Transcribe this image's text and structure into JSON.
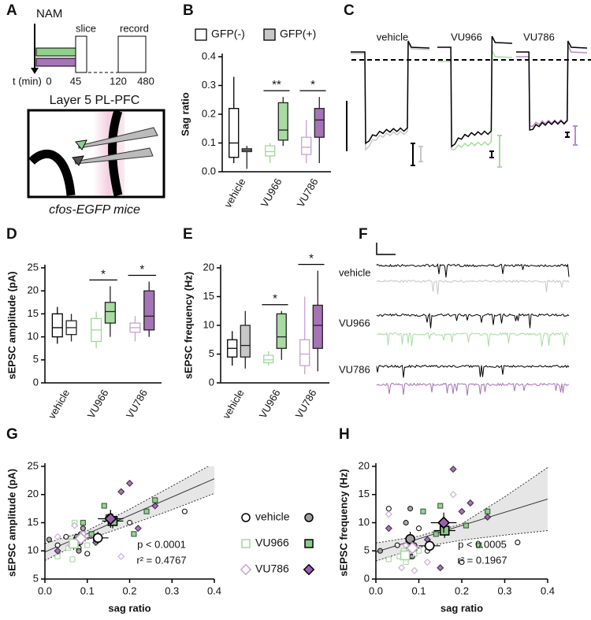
{
  "panel_labels": [
    "A",
    "B",
    "C",
    "D",
    "E",
    "F",
    "G",
    "H"
  ],
  "schematic": {
    "nam": "NAM",
    "slice": "slice",
    "record": "record",
    "time_label": "t (min)",
    "times": [
      0,
      45,
      120,
      480
    ],
    "region": "Layer 5 PL-PFC",
    "mice": "cfos-EGFP mice"
  },
  "traces_c": [
    "vehicle",
    "VU966",
    "VU786"
  ],
  "traces_f": [
    "vehicle",
    "VU966",
    "VU786"
  ],
  "chart_data": [
    {
      "type": "box",
      "ylabel": "Sag ratio",
      "categories": [
        "vehicle",
        "VU966",
        "VU786"
      ],
      "ylim": [
        0,
        0.4
      ],
      "yticks": [
        {
          "value": 0,
          "label": "0.0"
        },
        0.1,
        0.2,
        0.3,
        0.4
      ],
      "stroke_colors": [
        "#000000",
        "#9fd89a",
        "#c7a0d4"
      ],
      "fill_colors": [
        "#c8c8c8",
        "#a8dba2",
        "#a673b6"
      ],
      "legend": true,
      "series": [
        {
          "name": "GFP(-)",
          "color": "#ffffff",
          "values": [
            [
              0.03,
              0.05,
              0.1,
              0.22,
              0.33
            ],
            [
              0.03,
              0.055,
              0.07,
              0.09,
              0.1
            ],
            [
              0.03,
              0.06,
              0.085,
              0.12,
              0.18
            ]
          ]
        },
        {
          "name": "GFP(+)",
          "color": "#c8c8c8",
          "values": [
            [
              0.01,
              0.07,
              0.075,
              0.08,
              0.09
            ],
            [
              0.09,
              0.11,
              0.145,
              0.24,
              0.26
            ],
            [
              0.03,
              0.12,
              0.18,
              0.22,
              0.26
            ]
          ]
        }
      ],
      "annotations": [
        {
          "category": "VU966",
          "text": "**"
        },
        {
          "category": "VU786",
          "text": "*"
        }
      ]
    },
    {
      "type": "box",
      "ylabel": "sEPSC amplitude (pA)",
      "categories": [
        "vehicle",
        "VU966",
        "VU786"
      ],
      "ylim": [
        0,
        25
      ],
      "yticks": [
        0,
        5,
        10,
        15,
        20,
        25
      ],
      "stroke_colors": [
        "#000000",
        "#9fd89a",
        "#c7a0d4"
      ],
      "fill_colors": [
        "#ffffff",
        "#a8dba2",
        "#a673b6"
      ],
      "series": [
        {
          "name": "GFP(-)",
          "color": "#ffffff",
          "values": [
            [
              8.5,
              10,
              12,
              15,
              16.5
            ],
            [
              7.5,
              9,
              11.5,
              14,
              15.5
            ],
            [
              9,
              11,
              12,
              13,
              14.5
            ]
          ]
        },
        {
          "name": "GFP(+)",
          "color": "#c8c8c8",
          "values": [
            [
              9,
              10.5,
              12,
              13.5,
              15
            ],
            [
              10,
              13,
              15.5,
              17.5,
              21
            ],
            [
              10,
              11.5,
              14.5,
              20,
              22
            ]
          ]
        }
      ],
      "annotations": [
        {
          "category": "VU966",
          "text": "*"
        },
        {
          "category": "VU786",
          "text": "*"
        }
      ]
    },
    {
      "type": "box",
      "ylabel": "sEPSC frequency (Hz)",
      "categories": [
        "vehicle",
        "VU966",
        "VU786"
      ],
      "ylim": [
        0,
        20
      ],
      "yticks": [
        0,
        5,
        10,
        15,
        20
      ],
      "stroke_colors": [
        "#000000",
        "#9fd89a",
        "#c7a0d4"
      ],
      "fill_colors": [
        "#c8c8c8",
        "#a8dba2",
        "#a673b6"
      ],
      "series": [
        {
          "name": "GFP(-)",
          "color": "#ffffff",
          "values": [
            [
              3,
              4.5,
              6,
              7.5,
              9
            ],
            [
              3,
              3.5,
              4,
              4.8,
              5.5
            ],
            [
              1.5,
              3,
              5,
              7.5,
              15
            ]
          ]
        },
        {
          "name": "GFP(+)",
          "color": "#c8c8c8",
          "values": [
            [
              2.5,
              4.5,
              6.5,
              10,
              12.5
            ],
            [
              4,
              6,
              8,
              12,
              12.5
            ],
            [
              2,
              6,
              10,
              13.5,
              19.5
            ]
          ]
        }
      ],
      "annotations": [
        {
          "category": "VU966",
          "text": "*"
        },
        {
          "category": "VU786",
          "text": "*"
        }
      ]
    },
    {
      "type": "scatter",
      "xlabel": "sag ratio",
      "ylabel": "sEPSC amplitude (pA)",
      "xlim": [
        0,
        0.4
      ],
      "xticks": [
        {
          "value": 0,
          "label": "0.0"
        },
        0.1,
        0.2,
        0.3,
        0.4
      ],
      "ylim": [
        5,
        25
      ],
      "yticks": [
        5,
        10,
        15,
        20,
        25
      ],
      "stats": [
        "p < 0.0001",
        "r² = 0.4767"
      ],
      "fit": {
        "x": [
          0,
          0.4
        ],
        "y": [
          9.8,
          22.8
        ]
      },
      "ci": {
        "x": [
          0,
          0.1,
          0.2,
          0.3,
          0.4
        ],
        "lower": [
          8.3,
          12.0,
          14.6,
          17.3,
          20.2
        ],
        "upper": [
          11.3,
          13.6,
          17.4,
          21.5,
          25.6
        ]
      },
      "legend": true,
      "series": [
        {
          "name": "vehicle",
          "marker": "circle",
          "color": "#000000",
          "fill": "#a0a0a0",
          "edge": "#000000",
          "gfp_neg": {
            "x": [
              0.03,
              0.05,
              0.08,
              0.1,
              0.12,
              0.2,
              0.33
            ],
            "y": [
              11,
              12.5,
              10.5,
              9.5,
              12,
              15,
              17
            ]
          },
          "gfp_pos": {
            "x": [
              0.01,
              0.07,
              0.075,
              0.08,
              0.085,
              0.09
            ],
            "y": [
              12,
              11,
              12.5,
              10,
              13,
              14
            ]
          },
          "mean_neg": {
            "x": 0.125,
            "y": 12.3,
            "xerr": 0.025,
            "yerr": 1.1
          },
          "mean_pos": {
            "x": 0.08,
            "y": 11.8,
            "xerr": 0.008,
            "yerr": 0.8
          }
        },
        {
          "name": "VU966",
          "marker": "square",
          "color": "#9fd89a",
          "fill": "#8cc98a",
          "edge": "#1f4f1f",
          "gfp_neg": {
            "x": [
              0.03,
              0.055,
              0.065,
              0.07,
              0.09,
              0.1
            ],
            "y": [
              9,
              10.5,
              8.5,
              15,
              13,
              11
            ]
          },
          "gfp_pos": {
            "x": [
              0.09,
              0.11,
              0.14,
              0.15,
              0.24,
              0.26,
              0.21
            ],
            "y": [
              15,
              13,
              18,
              16,
              17,
              19,
              13
            ]
          },
          "mean_neg": {
            "x": 0.068,
            "y": 11.3,
            "xerr": 0.01,
            "yerr": 1.1
          },
          "mean_pos": {
            "x": 0.16,
            "y": 15.3,
            "xerr": 0.025,
            "yerr": 1.3
          }
        },
        {
          "name": "VU786",
          "marker": "diamond",
          "color": "#c7a0d4",
          "fill": "#9b5fb0",
          "edge": "#2e1238",
          "gfp_neg": {
            "x": [
              0.03,
              0.06,
              0.08,
              0.09,
              0.12,
              0.18,
              0.07
            ],
            "y": [
              12.5,
              11,
              11.5,
              13,
              12.5,
              9,
              14.5
            ]
          },
          "gfp_pos": {
            "x": [
              0.03,
              0.12,
              0.18,
              0.2,
              0.22,
              0.26,
              0.15
            ],
            "y": [
              10,
              11.5,
              20.5,
              22,
              14,
              18,
              16
            ]
          },
          "mean_neg": {
            "x": 0.085,
            "y": 12.2,
            "xerr": 0.015,
            "yerr": 0.7
          },
          "mean_pos": {
            "x": 0.155,
            "y": 15.7,
            "xerr": 0.03,
            "yerr": 1.6
          }
        }
      ]
    },
    {
      "type": "scatter",
      "xlabel": "sag ratio",
      "ylabel": "sEPSC frequency (Hz)",
      "xlim": [
        0,
        0.4
      ],
      "xticks": [
        {
          "value": 0,
          "label": "0.0"
        },
        0.1,
        0.2,
        0.3,
        0.4
      ],
      "ylim": [
        0,
        20
      ],
      "yticks": [
        0,
        5,
        10,
        15,
        20
      ],
      "stats": [
        "p < 0.0005",
        "r² = 0.1967"
      ],
      "fit": {
        "x": [
          0,
          0.4
        ],
        "y": [
          4.8,
          14.2
        ]
      },
      "ci": {
        "x": [
          0,
          0.1,
          0.2,
          0.3,
          0.4
        ],
        "lower": [
          3.2,
          5.6,
          6.9,
          7.8,
          8.6
        ],
        "upper": [
          6.4,
          7.6,
          9.8,
          14.6,
          19.8
        ]
      },
      "series": [
        {
          "name": "vehicle",
          "marker": "circle",
          "color": "#000000",
          "fill": "#a0a0a0",
          "edge": "#000000",
          "gfp_neg": {
            "x": [
              0.03,
              0.05,
              0.08,
              0.1,
              0.12,
              0.2,
              0.33
            ],
            "y": [
              12.5,
              6,
              4,
              9,
              5,
              3,
              6.5
            ]
          },
          "gfp_pos": {
            "x": [
              0.01,
              0.07,
              0.075,
              0.08,
              0.085,
              0.09
            ],
            "y": [
              5,
              10,
              6.5,
              12.5,
              4,
              6
            ]
          },
          "mean_neg": {
            "x": 0.125,
            "y": 5.9,
            "xerr": 0.025,
            "yerr": 1.0
          },
          "mean_pos": {
            "x": 0.08,
            "y": 7.1,
            "xerr": 0.01,
            "yerr": 1.3
          }
        },
        {
          "name": "VU966",
          "marker": "square",
          "color": "#9fd89a",
          "fill": "#8cc98a",
          "edge": "#1f4f1f",
          "gfp_neg": {
            "x": [
              0.03,
              0.055,
              0.065,
              0.07,
              0.09,
              0.1
            ],
            "y": [
              3.5,
              4,
              5,
              3,
              4.5,
              5
            ]
          },
          "gfp_pos": {
            "x": [
              0.09,
              0.11,
              0.14,
              0.15,
              0.24,
              0.26,
              0.21
            ],
            "y": [
              5.5,
              12,
              8,
              13,
              6,
              12,
              9.5
            ]
          },
          "mean_neg": {
            "x": 0.068,
            "y": 4.2,
            "xerr": 0.01,
            "yerr": 0.4
          },
          "mean_pos": {
            "x": 0.16,
            "y": 8.6,
            "xerr": 0.025,
            "yerr": 1.3
          }
        },
        {
          "name": "VU786",
          "marker": "diamond",
          "color": "#c7a0d4",
          "fill": "#9b5fb0",
          "edge": "#2e1238",
          "gfp_neg": {
            "x": [
              0.03,
              0.06,
              0.08,
              0.09,
              0.12,
              0.18,
              0.07
            ],
            "y": [
              11.5,
              2,
              5,
              1.5,
              3,
              15,
              6
            ]
          },
          "gfp_pos": {
            "x": [
              0.03,
              0.12,
              0.18,
              0.2,
              0.22,
              0.26,
              0.15
            ],
            "y": [
              9,
              7,
              19.5,
              12,
              13.5,
              11,
              2
            ]
          },
          "mean_neg": {
            "x": 0.085,
            "y": 5.5,
            "xerr": 0.015,
            "yerr": 1.3
          },
          "mean_pos": {
            "x": 0.158,
            "y": 10.0,
            "xerr": 0.03,
            "yerr": 1.8
          }
        }
      ]
    }
  ]
}
